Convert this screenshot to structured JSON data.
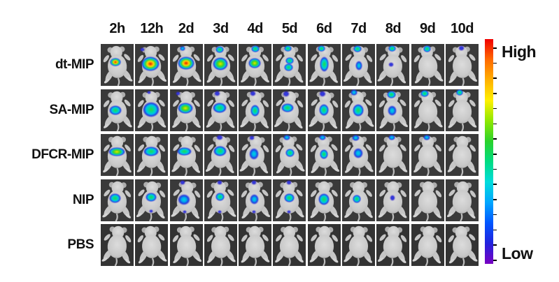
{
  "figure": {
    "description": "In vivo fluorescence imaging of mice over time for five treatment groups",
    "time_points": [
      "2h",
      "12h",
      "2d",
      "3d",
      "4d",
      "5d",
      "6d",
      "7d",
      "8d",
      "9d",
      "10d"
    ],
    "groups": [
      "dt-MIP",
      "SA-MIP",
      "DFCR-MIP",
      "NIP",
      "PBS"
    ]
  },
  "colorbar": {
    "high_label": "High",
    "low_label": "Low",
    "tick_count": 15,
    "gradient": [
      "#f00000",
      "#ff6a00",
      "#ffb000",
      "#fff000",
      "#8fe800",
      "#2bd22b",
      "#00dc82",
      "#00dcdc",
      "#00a6ff",
      "#0055ff",
      "#2222dd",
      "#7a00c2"
    ]
  },
  "palette": {
    "panel_bg": "#3a3a3a",
    "panel_bg_pbs": "#333333",
    "mouse_body_edge": "#b6b6b6",
    "mouse_body_center": "#dcdcdc",
    "mouse_limb": "#c6c6c6",
    "mouse_ear": "#aeaeae",
    "label_color": "#111111"
  },
  "signal_levels": {
    "5": "#cc1800 0%, #ff7300 18%, #ffe000 36%, #39d23c 56%, #00c6e8 74%, #2633dc 88%, rgba(58,34,215,0) 100%",
    "4": "#ffe000 0%, #8be000 22%, #2bd040 45%, #00c6e8 68%, #2633dc 86%, rgba(58,34,215,0) 100%",
    "3": "#2ed04a 0%, #00dca0 35%, #00c0f0 60%, #2633dc 84%, rgba(58,34,215,0) 100%",
    "2": "#00d8d8 0%, #00a8f0 40%, #2633dc 75%, rgba(58,34,215,0) 100%",
    "1": "#2a50e8 0%, #3328d0 55%, rgba(90,20,200,0) 100%"
  },
  "grid": {
    "signal_format": "[x_percent, y_percent, width_px, height_px, intensity_level]",
    "rows": [
      {
        "label": "dt-MIP",
        "cells": [
          {
            "time": "2h",
            "signals": [
              [
                44,
                44,
                16,
                12,
                5
              ]
            ]
          },
          {
            "time": "12h",
            "signals": [
              [
                22,
                13,
                7,
                6,
                1
              ],
              [
                47,
                47,
                26,
                21,
                5
              ]
            ]
          },
          {
            "time": "2d",
            "signals": [
              [
                40,
                11,
                8,
                7,
                2
              ],
              [
                50,
                45,
                24,
                19,
                5
              ]
            ]
          },
          {
            "time": "3d",
            "signals": [
              [
                46,
                13,
                12,
                10,
                3
              ],
              [
                50,
                48,
                22,
                19,
                4
              ]
            ]
          },
          {
            "time": "4d",
            "signals": [
              [
                50,
                11,
                12,
                10,
                3
              ],
              [
                48,
                45,
                18,
                15,
                4
              ]
            ]
          },
          {
            "time": "5d",
            "signals": [
              [
                44,
                11,
                11,
                9,
                3
              ],
              [
                50,
                40,
                12,
                10,
                3
              ],
              [
                47,
                56,
                13,
                11,
                3
              ]
            ]
          },
          {
            "time": "6d",
            "signals": [
              [
                42,
                11,
                11,
                9,
                3
              ],
              [
                50,
                48,
                13,
                22,
                3
              ]
            ]
          },
          {
            "time": "7d",
            "signals": [
              [
                46,
                11,
                12,
                10,
                3
              ],
              [
                50,
                51,
                10,
                14,
                2
              ]
            ]
          },
          {
            "time": "8d",
            "signals": [
              [
                48,
                11,
                11,
                9,
                3
              ],
              [
                44,
                49,
                8,
                7,
                1
              ]
            ]
          },
          {
            "time": "9d",
            "signals": [
              [
                48,
                11,
                11,
                10,
                3
              ]
            ]
          },
          {
            "time": "10d",
            "signals": [
              [
                48,
                10,
                9,
                8,
                1
              ]
            ]
          }
        ]
      },
      {
        "label": "SA-MIP",
        "cells": [
          {
            "time": "2h",
            "signals": [
              [
                44,
                50,
                18,
                14,
                3
              ]
            ]
          },
          {
            "time": "12h",
            "signals": [
              [
                42,
                9,
                6,
                5,
                1
              ],
              [
                48,
                49,
                24,
                22,
                3
              ]
            ]
          },
          {
            "time": "2d",
            "signals": [
              [
                26,
                11,
                7,
                6,
                1
              ],
              [
                48,
                45,
                22,
                16,
                4
              ]
            ]
          },
          {
            "time": "3d",
            "signals": [
              [
                40,
                11,
                9,
                8,
                1
              ],
              [
                48,
                45,
                20,
                15,
                3
              ]
            ]
          },
          {
            "time": "4d",
            "signals": [
              [
                44,
                11,
                9,
                8,
                1
              ],
              [
                50,
                52,
                13,
                17,
                3
              ]
            ]
          },
          {
            "time": "5d",
            "signals": [
              [
                40,
                11,
                10,
                9,
                1
              ],
              [
                44,
                45,
                18,
                13,
                3
              ]
            ]
          },
          {
            "time": "6d",
            "signals": [
              [
                46,
                11,
                10,
                9,
                1
              ],
              [
                50,
                50,
                14,
                17,
                3
              ]
            ]
          },
          {
            "time": "7d",
            "signals": [
              [
                36,
                9,
                10,
                9,
                2
              ],
              [
                48,
                50,
                16,
                18,
                3
              ]
            ]
          },
          {
            "time": "8d",
            "signals": [
              [
                46,
                13,
                13,
                11,
                3
              ],
              [
                48,
                52,
                13,
                15,
                2
              ]
            ]
          },
          {
            "time": "9d",
            "signals": [
              [
                42,
                11,
                12,
                10,
                3
              ]
            ]
          },
          {
            "time": "10d",
            "signals": [
              [
                42,
                9,
                10,
                9,
                3
              ]
            ]
          }
        ]
      },
      {
        "label": "DFCR-MIP",
        "cells": [
          {
            "time": "2h",
            "signals": [
              [
                48,
                42,
                24,
                13,
                4
              ]
            ]
          },
          {
            "time": "12h",
            "signals": [
              [
                48,
                41,
                22,
                14,
                3
              ]
            ]
          },
          {
            "time": "2d",
            "signals": [
              [
                44,
                42,
                21,
                12,
                3
              ]
            ]
          },
          {
            "time": "3d",
            "signals": [
              [
                46,
                9,
                10,
                8,
                1
              ],
              [
                48,
                41,
                19,
                15,
                3
              ]
            ]
          },
          {
            "time": "4d",
            "signals": [
              [
                40,
                9,
                8,
                7,
                1
              ],
              [
                46,
                48,
                14,
                17,
                2
              ]
            ]
          },
          {
            "time": "5d",
            "signals": [
              [
                42,
                9,
                10,
                8,
                2
              ],
              [
                52,
                45,
                13,
                12,
                3
              ]
            ]
          },
          {
            "time": "6d",
            "signals": [
              [
                46,
                9,
                10,
                8,
                2
              ],
              [
                50,
                48,
                12,
                14,
                3
              ]
            ]
          },
          {
            "time": "7d",
            "signals": [
              [
                42,
                9,
                11,
                9,
                2
              ],
              [
                48,
                45,
                14,
                15,
                2
              ]
            ]
          },
          {
            "time": "8d",
            "signals": [
              [
                46,
                9,
                10,
                8,
                2
              ]
            ]
          },
          {
            "time": "9d",
            "signals": [
              [
                48,
                9,
                10,
                8,
                2
              ]
            ]
          },
          {
            "time": "10d",
            "signals": []
          }
        ]
      },
      {
        "label": "NIP",
        "cells": [
          {
            "time": "2h",
            "signals": [
              [
                44,
                46,
                17,
                14,
                3
              ]
            ]
          },
          {
            "time": "12h",
            "signals": [
              [
                48,
                43,
                16,
                13,
                3
              ],
              [
                48,
                76,
                6,
                5,
                1
              ]
            ]
          },
          {
            "time": "2d",
            "signals": [
              [
                40,
                9,
                8,
                7,
                1
              ],
              [
                43,
                49,
                18,
                16,
                2
              ],
              [
                46,
                79,
                6,
                5,
                1
              ]
            ]
          },
          {
            "time": "3d",
            "signals": [
              [
                46,
                9,
                8,
                7,
                1
              ],
              [
                48,
                43,
                13,
                12,
                3
              ],
              [
                48,
                79,
                6,
                5,
                1
              ]
            ]
          },
          {
            "time": "4d",
            "signals": [
              [
                46,
                9,
                8,
                7,
                1
              ],
              [
                48,
                48,
                13,
                15,
                2
              ],
              [
                46,
                79,
                6,
                5,
                1
              ]
            ]
          },
          {
            "time": "5d",
            "signals": [
              [
                48,
                9,
                8,
                7,
                1
              ],
              [
                48,
                45,
                15,
                13,
                3
              ],
              [
                48,
                79,
                6,
                5,
                1
              ]
            ]
          },
          {
            "time": "6d",
            "signals": [
              [
                50,
                48,
                16,
                17,
                3
              ]
            ]
          },
          {
            "time": "7d",
            "signals": [
              [
                45,
                48,
                12,
                12,
                3
              ]
            ]
          },
          {
            "time": "8d",
            "signals": [
              [
                48,
                45,
                8,
                9,
                1
              ]
            ]
          },
          {
            "time": "9d",
            "signals": []
          },
          {
            "time": "10d",
            "signals": []
          }
        ]
      },
      {
        "label": "PBS",
        "cells": [
          {
            "time": "2h",
            "signals": []
          },
          {
            "time": "12h",
            "signals": []
          },
          {
            "time": "2d",
            "signals": []
          },
          {
            "time": "3d",
            "signals": []
          },
          {
            "time": "4d",
            "signals": []
          },
          {
            "time": "5d",
            "signals": []
          },
          {
            "time": "6d",
            "signals": []
          },
          {
            "time": "7d",
            "signals": []
          },
          {
            "time": "8d",
            "signals": []
          },
          {
            "time": "9d",
            "signals": []
          },
          {
            "time": "10d",
            "signals": []
          }
        ]
      }
    ]
  }
}
